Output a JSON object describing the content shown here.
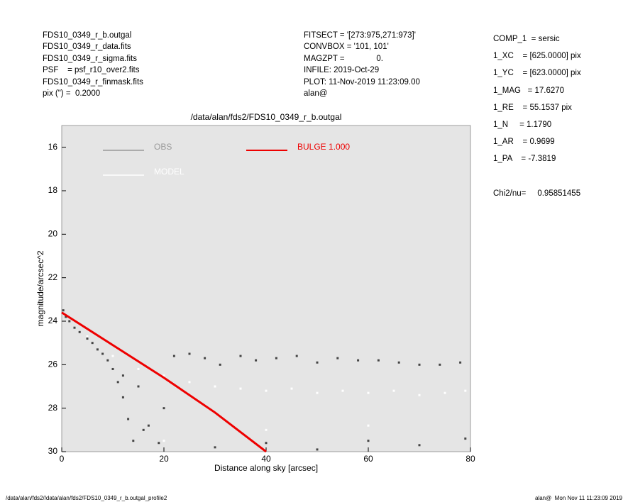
{
  "header_left": [
    "FDS10_0349_r_b.outgal",
    "FDS10_0349_r_data.fits",
    "FDS10_0349_r_sigma.fits",
    "PSF    = psf_r10_over2.fits",
    "FDS10_0349_r_finmask.fits",
    "pix (\") =  0.2000"
  ],
  "header_mid": [
    "FITSECT = '[273:975,271:973]'",
    "CONVBOX = '101, 101'",
    "MAGZPT =              0.",
    "INFILE: 2019-Oct-29",
    "PLOT: 11-Nov-2019 11:23:09.00",
    "alan@"
  ],
  "params": [
    "COMP_1  = sersic",
    "1_XC    = [625.0000] pix",
    "1_YC    = [623.0000] pix",
    "1_MAG   = 17.6270",
    "1_RE    = 55.1537 pix",
    "1_N     = 1.1790",
    "1_AR    = 0.9699",
    "1_PA    = -7.3819",
    "",
    "Chi2/nu=     0.95851455"
  ],
  "footer_left": "/data/alan/fds2//data/alan/fds2/FDS10_0349_r_b.outgal_profile2",
  "footer_right": "alan@  Mon Nov 11 11:23:09 2019",
  "chart_data": {
    "type": "scatter",
    "title": "/data/alan/fds2/FDS10_0349_r_b.outgal",
    "xlabel": "Distance along sky [arcsec]",
    "ylabel": "magnitude/arcsec^2",
    "xlim": [
      0,
      80
    ],
    "ylim": [
      30,
      15
    ],
    "xticks": [
      0,
      20,
      40,
      60,
      80
    ],
    "yticks": [
      16,
      18,
      20,
      22,
      24,
      26,
      28,
      30
    ],
    "background": "#e5e5e5",
    "series": [
      {
        "name": "OBS",
        "type": "scatter",
        "color": "#444444",
        "legend_color": "#999999",
        "x": [
          0.3,
          0.8,
          1.5,
          2.5,
          3.5,
          5,
          6,
          7,
          8,
          9,
          10,
          11,
          12,
          13,
          14,
          15,
          17,
          19,
          22,
          25,
          28,
          31,
          35,
          38,
          42,
          46,
          50,
          54,
          58,
          62,
          66,
          70,
          74,
          78,
          12,
          16,
          20,
          30,
          40,
          50,
          60,
          70,
          79
        ],
        "values": [
          23.5,
          23.8,
          24.0,
          24.3,
          24.5,
          24.8,
          25.0,
          25.3,
          25.5,
          25.8,
          26.2,
          26.8,
          27.5,
          28.5,
          29.5,
          27,
          28.8,
          29.6,
          25.6,
          25.5,
          25.7,
          26,
          25.6,
          25.8,
          25.7,
          25.6,
          25.9,
          25.7,
          25.8,
          25.8,
          25.9,
          26,
          26,
          25.9,
          26.5,
          29,
          28,
          29.8,
          29.6,
          29.9,
          29.5,
          29.7,
          29.4
        ]
      },
      {
        "name": "MODEL",
        "type": "scatter",
        "color": "#ffffff",
        "legend_color": "#ffffff",
        "x": [
          5,
          10,
          15,
          20,
          25,
          30,
          35,
          40,
          45,
          50,
          55,
          60,
          65,
          70,
          75,
          79,
          20,
          40,
          60
        ],
        "values": [
          24.7,
          25.6,
          26.2,
          26.5,
          26.8,
          27,
          27.1,
          27.2,
          27.1,
          27.3,
          27.2,
          27.3,
          27.2,
          27.4,
          27.3,
          27.2,
          29.5,
          29,
          28.8
        ]
      },
      {
        "name": "BULGE  1.000",
        "type": "line",
        "color": "#ee0000",
        "legend_color": "#ee0000",
        "x": [
          0,
          10,
          20,
          30,
          40
        ],
        "values": [
          23.6,
          25.1,
          26.6,
          28.2,
          30.0
        ]
      }
    ]
  }
}
